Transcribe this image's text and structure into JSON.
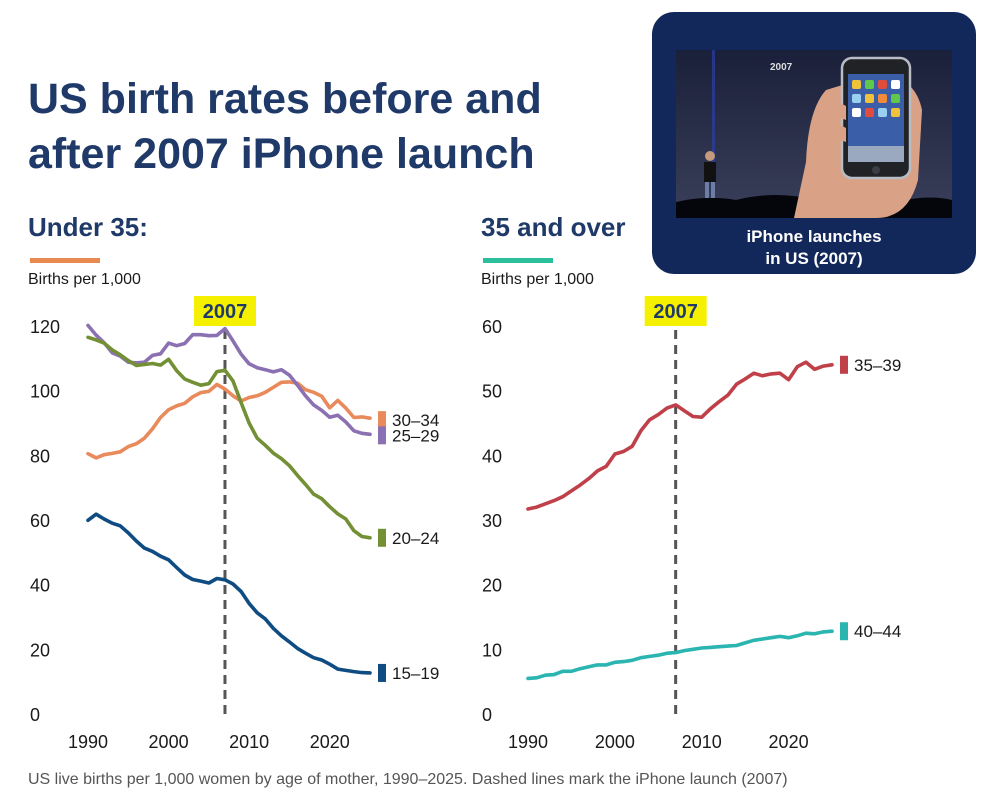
{
  "title_line1": "US birth rates before and",
  "title_line2": "after 2007 iPhone launch",
  "left_panel": {
    "heading": "Under 35:",
    "unit": "Births per 1,000",
    "accent_color": "#e88a4f"
  },
  "right_panel": {
    "heading": "35 and over",
    "unit": "Births per 1,000",
    "accent_color": "#2bbf9c"
  },
  "marker_year_label": "2007",
  "inset": {
    "photo_text": "2007",
    "caption_line1": "iPhone launches",
    "caption_line2": "in US (2007)"
  },
  "caption": "US live births per 1,000 women by age of mother, 1990–2025. Dashed lines mark the iPhone launch (2007)",
  "chart_data": [
    {
      "type": "line",
      "title": "Under 35:",
      "ylabel": "Births per 1,000",
      "x": [
        1990,
        1991,
        1992,
        1993,
        1994,
        1995,
        1996,
        1997,
        1998,
        1999,
        2000,
        2001,
        2002,
        2003,
        2004,
        2005,
        2006,
        2007,
        2008,
        2009,
        2010,
        2011,
        2012,
        2013,
        2014,
        2015,
        2016,
        2017,
        2018,
        2019,
        2020,
        2021,
        2022,
        2023,
        2024,
        2025
      ],
      "xlim": [
        1990,
        2025
      ],
      "ylim": [
        0,
        120
      ],
      "xticks": [
        "1990",
        "2000",
        "2010",
        "2020"
      ],
      "yticks": [
        "0",
        "20",
        "40",
        "60",
        "80",
        "100",
        "120"
      ],
      "marker_x": 2007,
      "grid": false,
      "series": [
        {
          "name": "30–34",
          "color": "#e88a5c",
          "values": [
            80.5,
            79.2,
            80.2,
            80.6,
            81.1,
            82.7,
            83.6,
            85.3,
            88.2,
            91.7,
            94.1,
            95.3,
            96.1,
            98.1,
            99.4,
            99.8,
            101.9,
            100.5,
            98.4,
            96.8,
            97.9,
            98.4,
            99.5,
            101.0,
            102.6,
            102.7,
            102.3,
            100.3,
            99.5,
            98.3,
            94.7,
            97.0,
            94.6,
            91.7,
            91.9,
            91.5
          ]
        },
        {
          "name": "25–29",
          "color": "#8b71b1",
          "values": [
            120.2,
            117.2,
            114.8,
            111.7,
            110.7,
            108.8,
            108.6,
            108.8,
            110.9,
            111.4,
            114.7,
            113.9,
            114.6,
            117.3,
            117.3,
            117.0,
            117.1,
            119.2,
            115.4,
            111.3,
            108.3,
            107.1,
            106.5,
            105.8,
            106.5,
            104.8,
            101.7,
            98.4,
            95.6,
            93.9,
            91.8,
            92.4,
            90.3,
            87.6,
            86.8,
            86.5
          ]
        },
        {
          "name": "20–24",
          "color": "#739034",
          "values": [
            116.5,
            115.7,
            114.7,
            112.6,
            111.1,
            109.3,
            107.8,
            108.1,
            108.4,
            107.9,
            109.7,
            106.2,
            103.6,
            102.6,
            101.7,
            102.2,
            105.9,
            106.3,
            103.0,
            96.3,
            90.0,
            85.3,
            83.1,
            80.7,
            79.0,
            76.8,
            73.8,
            71.0,
            68.0,
            66.6,
            64.1,
            61.9,
            60.3,
            56.7,
            54.9,
            54.5
          ]
        },
        {
          "name": "15–19",
          "color": "#0f4c81",
          "values": [
            59.9,
            61.8,
            60.3,
            59.0,
            58.2,
            56.0,
            53.5,
            51.3,
            50.3,
            48.8,
            47.7,
            45.3,
            43.0,
            41.6,
            41.1,
            40.5,
            41.9,
            41.5,
            40.2,
            37.9,
            34.2,
            31.3,
            29.4,
            26.5,
            24.2,
            22.3,
            20.3,
            18.8,
            17.4,
            16.7,
            15.4,
            13.9,
            13.5,
            13.1,
            12.8,
            12.7
          ]
        }
      ]
    },
    {
      "type": "line",
      "title": "35 and over",
      "ylabel": "Births per 1,000",
      "x": [
        1990,
        1991,
        1992,
        1993,
        1994,
        1995,
        1996,
        1997,
        1998,
        1999,
        2000,
        2001,
        2002,
        2003,
        2004,
        2005,
        2006,
        2007,
        2008,
        2009,
        2010,
        2011,
        2012,
        2013,
        2014,
        2015,
        2016,
        2017,
        2018,
        2019,
        2020,
        2021,
        2022,
        2023,
        2024,
        2025
      ],
      "xlim": [
        1990,
        2025
      ],
      "ylim": [
        0,
        60
      ],
      "xticks": [
        "1990",
        "2000",
        "2010",
        "2020"
      ],
      "yticks": [
        "0",
        "10",
        "20",
        "30",
        "40",
        "50",
        "60"
      ],
      "marker_x": 2007,
      "grid": false,
      "series": [
        {
          "name": "35–39",
          "color": "#c0404a",
          "values": [
            31.7,
            32.0,
            32.5,
            33.0,
            33.6,
            34.5,
            35.4,
            36.4,
            37.6,
            38.3,
            40.2,
            40.6,
            41.4,
            43.8,
            45.5,
            46.3,
            47.3,
            47.8,
            46.9,
            46.0,
            45.9,
            47.2,
            48.3,
            49.3,
            51.0,
            51.8,
            52.7,
            52.3,
            52.6,
            52.7,
            51.7,
            53.7,
            54.4,
            53.3,
            53.8,
            54.0
          ]
        },
        {
          "name": "40–44",
          "color": "#2bb5b0",
          "values": [
            5.5,
            5.6,
            6.0,
            6.1,
            6.6,
            6.6,
            7.0,
            7.3,
            7.6,
            7.6,
            8.0,
            8.1,
            8.3,
            8.7,
            8.9,
            9.1,
            9.4,
            9.5,
            9.8,
            10.0,
            10.2,
            10.3,
            10.4,
            10.5,
            10.6,
            11.0,
            11.4,
            11.6,
            11.8,
            12.0,
            11.8,
            12.1,
            12.5,
            12.4,
            12.7,
            12.8
          ]
        }
      ]
    }
  ]
}
